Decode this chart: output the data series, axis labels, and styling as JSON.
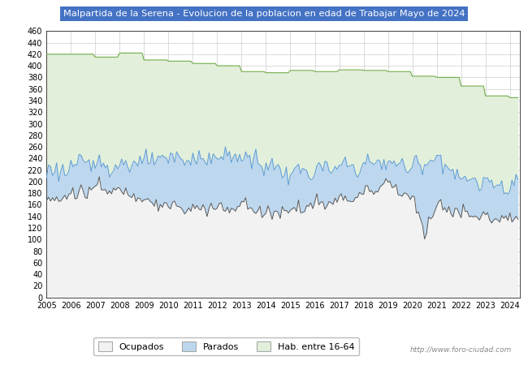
{
  "title": "Malpartida de la Serena - Evolucion de la poblacion en edad de Trabajar Mayo de 2024",
  "title_bg": "#4472c4",
  "title_color": "white",
  "ylim": [
    0,
    460
  ],
  "yticks": [
    0,
    20,
    40,
    60,
    80,
    100,
    120,
    140,
    160,
    180,
    200,
    220,
    240,
    260,
    280,
    300,
    320,
    340,
    360,
    380,
    400,
    420,
    440,
    460
  ],
  "legend_labels": [
    "Ocupados",
    "Parados",
    "Hab. entre 16-64"
  ],
  "legend_colors": [
    "#f2f2f2",
    "#bdd7ee",
    "#e2efda"
  ],
  "legend_border": "#aaaaaa",
  "watermark": "http://www.foro-ciudad.com",
  "bg_color": "#ffffff",
  "plot_bg": "#ffffff",
  "grid_color": "#cccccc",
  "hab_color": "#e2efda",
  "hab_line_color": "#70ad47",
  "parados_color": "#bdd7ee",
  "parados_line_color": "#5b9bd5",
  "ocupados_color": "#f2f2f2",
  "ocupados_line_color": "#595959"
}
